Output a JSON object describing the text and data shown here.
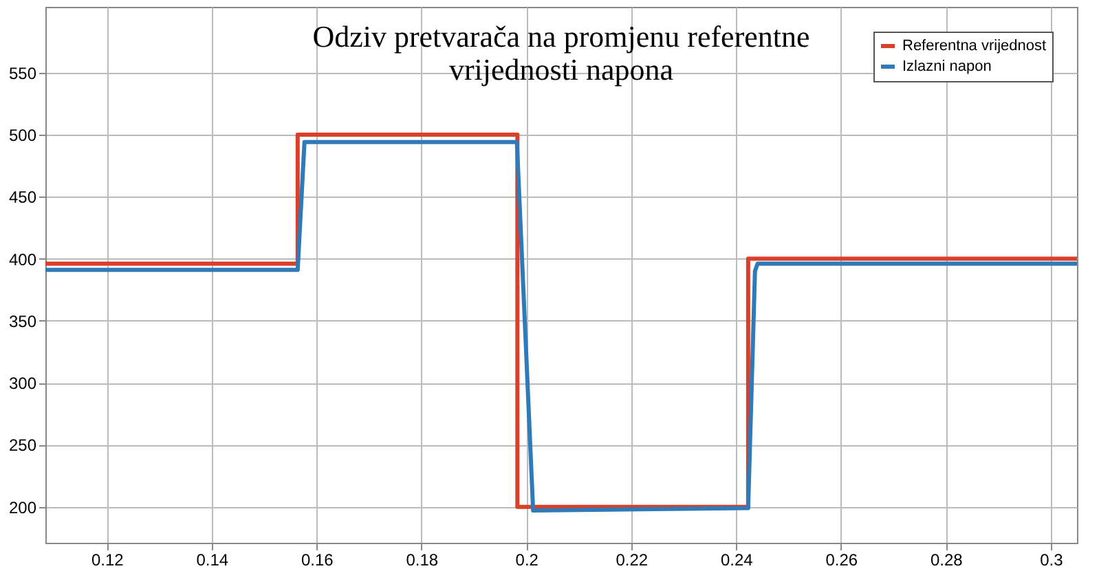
{
  "chart_data": {
    "type": "line",
    "title": [
      "Odziv pretvarača na promjenu referentne",
      "vrijednosti napona"
    ],
    "series": [
      {
        "name": "Referentna vrijednost",
        "color": "#d9402a",
        "x": [
          0.1083,
          0.1564,
          0.1564,
          0.1983,
          0.1983,
          0.2423,
          0.2423,
          0.305
        ],
        "values": [
          396,
          396,
          500,
          500,
          200,
          200,
          400,
          400
        ]
      },
      {
        "name": "Izlazni napon",
        "color": "#2f7ab8",
        "x": [
          0.1083,
          0.1564,
          0.1577,
          0.1982,
          0.2013,
          0.2423,
          0.2436,
          0.2441,
          0.2445,
          0.305
        ],
        "values": [
          391,
          391,
          494,
          494,
          197,
          199,
          390,
          396,
          396,
          396
        ]
      }
    ],
    "xlim": [
      0.1083,
      0.305
    ],
    "xticks": [
      0.12,
      0.14,
      0.16,
      0.18,
      0.2,
      0.22,
      0.24,
      0.26,
      0.28,
      0.3
    ],
    "ylim": [
      171,
      603
    ],
    "yticks": [
      200,
      250,
      300,
      350,
      400,
      450,
      500,
      550
    ],
    "grid": true,
    "legend": "top right",
    "line_style": "solid",
    "marker": "none"
  }
}
